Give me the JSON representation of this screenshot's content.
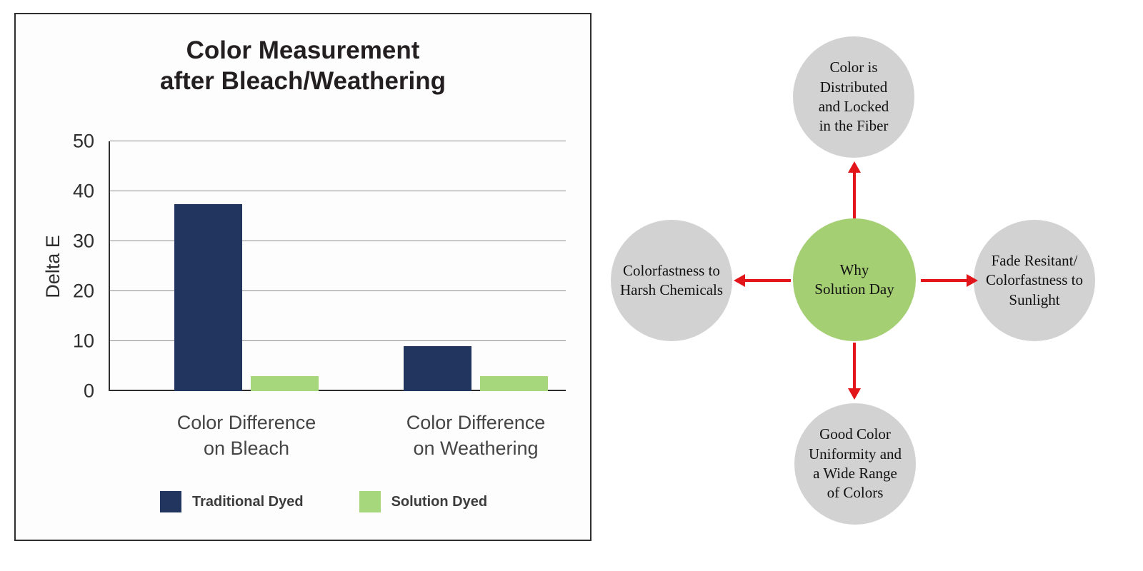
{
  "figure": {
    "title_line1": "Color Measurement",
    "title_line2": "after Bleach/Weathering"
  },
  "chart_data": {
    "type": "bar",
    "title": "Color Measurement after Bleach/Weathering",
    "ylabel": "Delta E",
    "ylim": [
      0,
      50
    ],
    "yticks": [
      0,
      10,
      20,
      30,
      40,
      50
    ],
    "grid": true,
    "legend_position": "bottom",
    "categories": [
      "Color Difference on Bleach",
      "Color Difference on Weathering"
    ],
    "series": [
      {
        "name": "Traditional Dyed",
        "color": "#21355e",
        "values": [
          37.5,
          9
        ]
      },
      {
        "name": "Solution Dyed",
        "color": "#a7d77c",
        "values": [
          3,
          3
        ]
      }
    ]
  },
  "diagram": {
    "center": {
      "label": "Why\nSolution Day",
      "color": "#a5cf73"
    },
    "node_color": "#d2d2d2",
    "arrow_color": "#e2151b",
    "nodes": [
      {
        "position": "top",
        "label": "Color is\nDistributed\nand Locked\nin the Fiber"
      },
      {
        "position": "left",
        "label": "Colorfastness to\nHarsh Chemicals"
      },
      {
        "position": "right",
        "label": "Fade Resitant/\nColorfastness to\nSunlight"
      },
      {
        "position": "bottom",
        "label": "Good Color\nUniformity and\na Wide Range\nof Colors"
      }
    ]
  }
}
